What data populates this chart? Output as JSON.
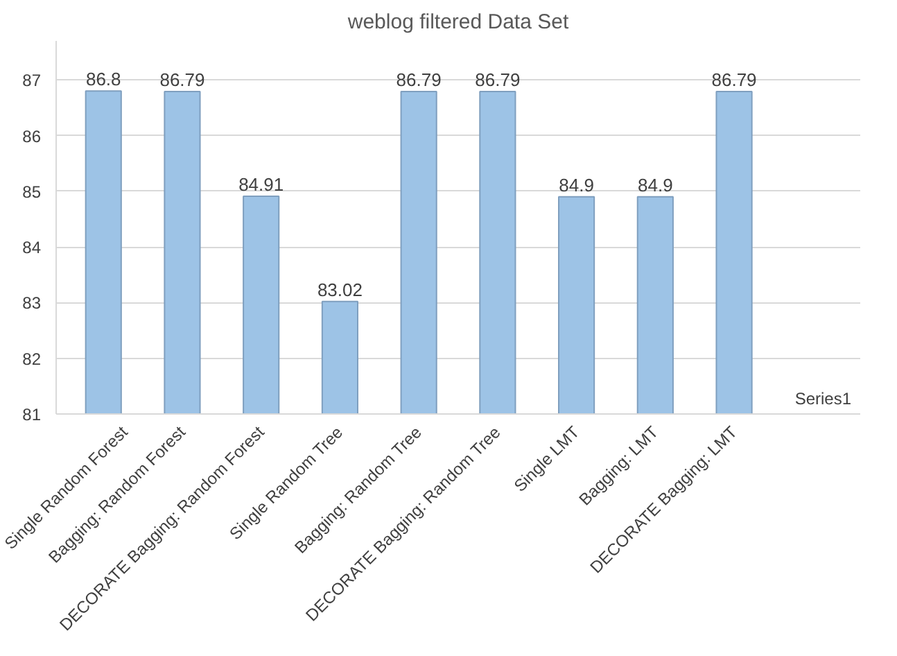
{
  "chart_data": {
    "type": "bar",
    "title": "weblog filtered Data Set",
    "categories": [
      "Single Random Forest",
      "Bagging: Random Forest",
      "DECORATE Bagging: Random Forest",
      "Single Random Tree",
      "Bagging: Random Tree",
      "DECORATE Bagging: Random Tree",
      "Single LMT",
      "Bagging: LMT",
      "DECORATE Bagging: LMT"
    ],
    "series": [
      {
        "name": "Series1",
        "color": "#9dc3e6",
        "values": [
          86.8,
          86.79,
          84.91,
          83.02,
          86.79,
          86.79,
          84.9,
          84.9,
          86.79
        ]
      }
    ],
    "ylim": [
      81,
      87.7
    ],
    "yticks": [
      81,
      82,
      83,
      84,
      85,
      86,
      87
    ],
    "grid": "y",
    "data_labels": true
  }
}
